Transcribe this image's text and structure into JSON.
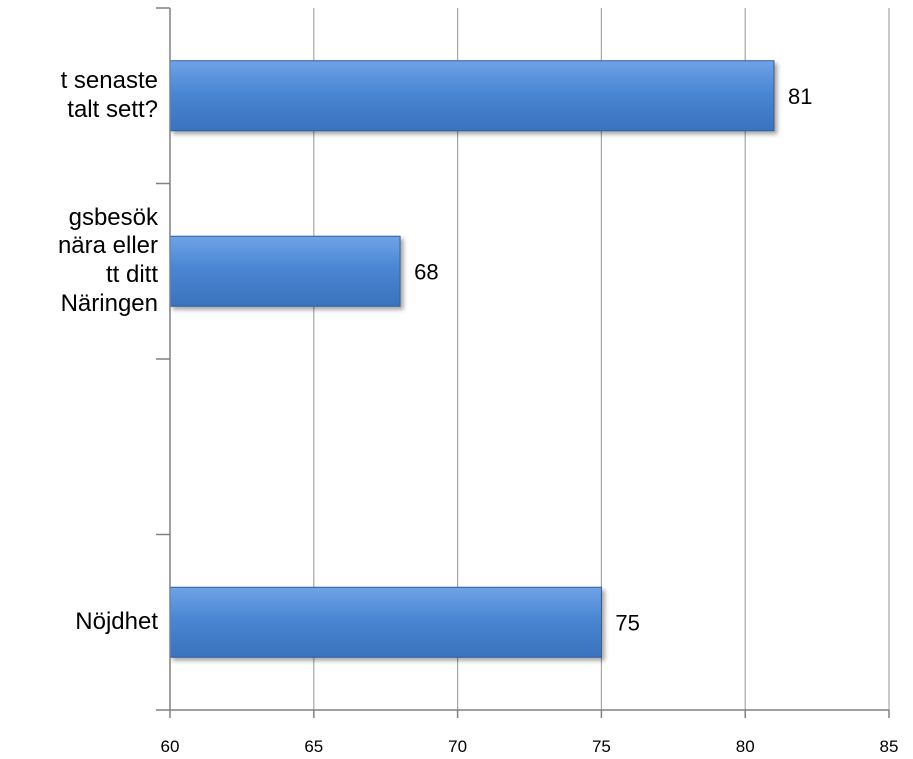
{
  "chart_data": {
    "type": "bar",
    "orientation": "horizontal",
    "categories": [
      "t senaste\ntalt sett?",
      "gsbesök\nnära eller\ntt ditt\nNäringen",
      "",
      "Nöjdhet"
    ],
    "values": [
      81,
      68,
      null,
      75
    ],
    "value_labels": [
      "81",
      "68",
      "",
      "75"
    ],
    "xlim": [
      60,
      85
    ],
    "xticks": [
      60,
      65,
      70,
      75,
      80,
      85
    ],
    "xtick_labels": [
      "60",
      "65",
      "70",
      "75",
      "80",
      "85"
    ],
    "title": "",
    "xlabel": "",
    "ylabel": "",
    "grid": "vertical",
    "legend": "none",
    "colors": {
      "bar": "#4a86d4",
      "bar_edge": "#2f5f9e",
      "grid": "#a6a6a6",
      "axis": "#808080"
    }
  }
}
